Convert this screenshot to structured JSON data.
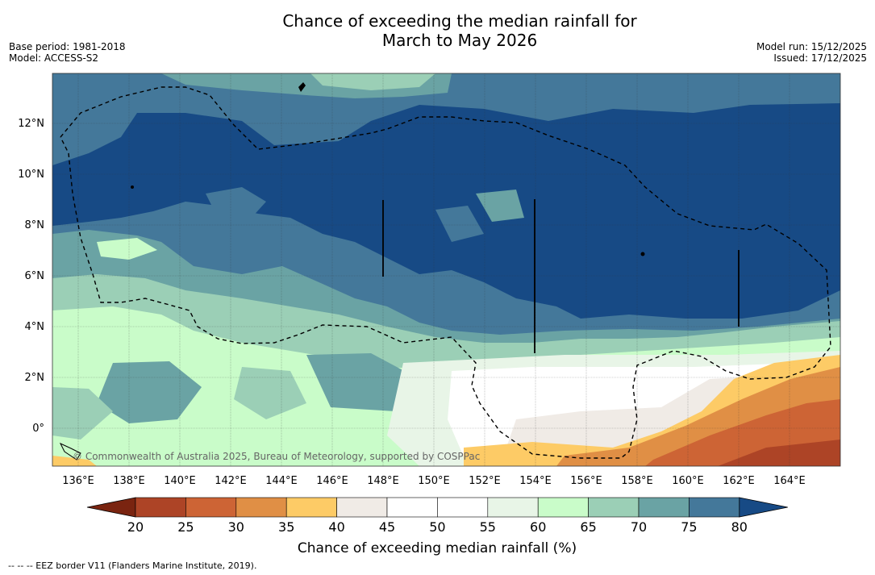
{
  "title": {
    "line1": "Chance of exceeding the median rainfall for",
    "line2": "March to May 2026"
  },
  "meta_left": {
    "base_period": "Base period: 1981-2018",
    "model": "Model: ACCESS-S2"
  },
  "meta_right": {
    "model_run": "Model run: 15/12/2025",
    "issued": "Issued: 17/12/2025"
  },
  "map": {
    "lat_labels": [
      "12°N",
      "10°N",
      "8°N",
      "6°N",
      "4°N",
      "2°N",
      "0°"
    ],
    "lon_labels": [
      "136°E",
      "138°E",
      "140°E",
      "142°E",
      "144°E",
      "146°E",
      "148°E",
      "150°E",
      "152°E",
      "154°E",
      "156°E",
      "158°E",
      "160°E",
      "162°E",
      "164°E"
    ],
    "copyright": "© Commonwealth of Australia 2025, Bureau of Meteorology, supported by COSPPac"
  },
  "colorbar": {
    "ticks": [
      "20",
      "25",
      "30",
      "35",
      "40",
      "45",
      "50",
      "55",
      "60",
      "65",
      "70",
      "75",
      "80"
    ],
    "colors": [
      "#7a2410",
      "#ad4426",
      "#cd6435",
      "#e08f45",
      "#fdcb66",
      "#f0ebe6",
      "#ffffff",
      "#ffffff",
      "#e8f5e7",
      "#c9fcc9",
      "#9bcfb6",
      "#6aa3a4",
      "#44789a",
      "#174a85"
    ],
    "title": "Chance of exceeding median rainfall (%)"
  },
  "footer": "--  --  -- EEZ border V11 (Flanders Marine Institute, 2019)."
}
